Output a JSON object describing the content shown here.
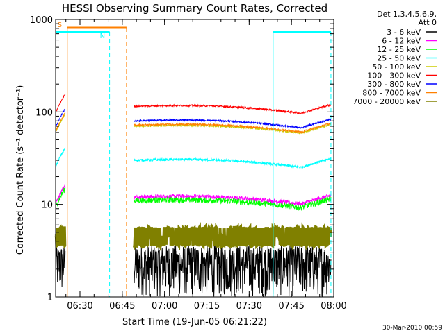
{
  "chart_data": {
    "type": "line",
    "title": "HESSI Observing Summary Count Rates, Corrected",
    "xlabel": "Start Time (19-Jun-05 06:21:22)",
    "ylabel": "Corrected Count Rate (s⁻¹ detector⁻¹)",
    "yscale": "log",
    "ylim": [
      1,
      1000
    ],
    "xlim": [
      "06:21:22",
      "08:00:00"
    ],
    "x_ticks": [
      "06:30",
      "06:45",
      "07:00",
      "07:15",
      "07:30",
      "07:45",
      "08:00"
    ],
    "y_ticks": [
      "1",
      "10",
      "100",
      "1000"
    ],
    "legend_header": [
      "Det 1,3,4,5,6,9,",
      "Att 0"
    ],
    "legend_position": "right",
    "grid": false,
    "series": [
      {
        "name": "3 - 6 keV",
        "color": "#000000",
        "base": 2.0,
        "noise": 0.35
      },
      {
        "name": "6 - 12 keV",
        "color": "#ff00ff",
        "base": 12,
        "noise": 0.05
      },
      {
        "name": "12 - 25 keV",
        "color": "#00ff00",
        "base": 11,
        "noise": 0.07
      },
      {
        "name": "25 - 50 keV",
        "color": "#00ffff",
        "base": 30,
        "noise": 0.03
      },
      {
        "name": "50 - 100 keV",
        "color": "#cccc00",
        "base": 70,
        "noise": 0.02
      },
      {
        "name": "100 - 300 keV",
        "color": "#ff0000",
        "base": 115,
        "noise": 0.02
      },
      {
        "name": "300 - 800 keV",
        "color": "#0000ff",
        "base": 80,
        "noise": 0.02
      },
      {
        "name": "800 - 7000 keV",
        "color": "#ff8000",
        "base": 72,
        "noise": 0.02
      },
      {
        "name": "7000 - 20000 keV",
        "color": "#808000",
        "base": 4.5,
        "noise": 0.08
      }
    ],
    "annotations": [
      {
        "label": "S",
        "color": "#ff8000",
        "start": "06:25:30",
        "end": "06:46:30"
      },
      {
        "label": "N",
        "color": "#00ffff",
        "start": "06:21:22",
        "end": "06:40:30"
      },
      {
        "label": "",
        "color": "#00ffff",
        "start": "07:38:30",
        "end": "07:59:00"
      }
    ],
    "footer_date": "30-Mar-2010 00:59"
  }
}
